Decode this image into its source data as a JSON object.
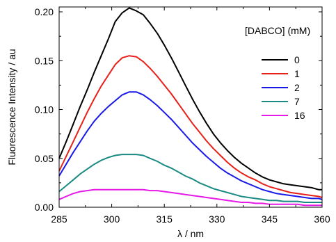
{
  "chart_data": {
    "type": "line",
    "xlabel": "λ / nm",
    "ylabel": "Fluorescence Intensity / au",
    "xlim": [
      285,
      360
    ],
    "ylim": [
      0,
      0.205
    ],
    "xticks": [
      "285",
      "300",
      "315",
      "330",
      "345",
      "360"
    ],
    "yticks": [
      "0.00",
      "0.05",
      "0.10",
      "0.15",
      "0.20"
    ],
    "legend": {
      "title": "[DABCO] (mM)",
      "placement": "top-right"
    },
    "series": [
      {
        "name": "0",
        "color": "#000000",
        "x": [
          285,
          287,
          289,
          291,
          293,
          295,
          297,
          299,
          301,
          303,
          305,
          307,
          309,
          311,
          313,
          315,
          317,
          319,
          321,
          323,
          325,
          327,
          329,
          331,
          333,
          335,
          337,
          339,
          341,
          343,
          345,
          347,
          349,
          351,
          353,
          355,
          357,
          359,
          360
        ],
        "y": [
          0.05,
          0.067,
          0.085,
          0.103,
          0.12,
          0.138,
          0.155,
          0.172,
          0.19,
          0.199,
          0.204,
          0.201,
          0.197,
          0.188,
          0.178,
          0.166,
          0.153,
          0.139,
          0.125,
          0.111,
          0.098,
          0.086,
          0.075,
          0.066,
          0.058,
          0.051,
          0.045,
          0.04,
          0.035,
          0.031,
          0.028,
          0.026,
          0.024,
          0.023,
          0.022,
          0.021,
          0.02,
          0.018,
          0.018
        ]
      },
      {
        "name": "1",
        "color": "#e8201a",
        "x": [
          285,
          287,
          289,
          291,
          293,
          295,
          297,
          299,
          301,
          303,
          305,
          307,
          309,
          311,
          313,
          315,
          317,
          319,
          321,
          323,
          325,
          327,
          329,
          331,
          333,
          335,
          337,
          339,
          341,
          343,
          345,
          347,
          349,
          351,
          353,
          355,
          357,
          359,
          360
        ],
        "y": [
          0.037,
          0.052,
          0.067,
          0.082,
          0.097,
          0.111,
          0.124,
          0.135,
          0.146,
          0.153,
          0.155,
          0.154,
          0.149,
          0.142,
          0.134,
          0.125,
          0.116,
          0.106,
          0.096,
          0.086,
          0.077,
          0.068,
          0.06,
          0.053,
          0.046,
          0.04,
          0.035,
          0.031,
          0.028,
          0.024,
          0.021,
          0.019,
          0.017,
          0.015,
          0.014,
          0.013,
          0.012,
          0.011,
          0.01
        ]
      },
      {
        "name": "2",
        "color": "#1a1ae8",
        "x": [
          285,
          287,
          289,
          291,
          293,
          295,
          297,
          299,
          301,
          303,
          305,
          307,
          309,
          311,
          313,
          315,
          317,
          319,
          321,
          323,
          325,
          327,
          329,
          331,
          333,
          335,
          337,
          339,
          341,
          343,
          345,
          347,
          349,
          351,
          353,
          355,
          357,
          359,
          360
        ],
        "y": [
          0.032,
          0.044,
          0.056,
          0.067,
          0.078,
          0.088,
          0.096,
          0.103,
          0.109,
          0.115,
          0.118,
          0.118,
          0.115,
          0.11,
          0.104,
          0.097,
          0.09,
          0.082,
          0.074,
          0.066,
          0.059,
          0.052,
          0.046,
          0.04,
          0.035,
          0.031,
          0.027,
          0.024,
          0.021,
          0.018,
          0.016,
          0.014,
          0.013,
          0.012,
          0.011,
          0.01,
          0.009,
          0.009,
          0.008
        ]
      },
      {
        "name": "7",
        "color": "#1a8a82",
        "x": [
          285,
          287,
          289,
          291,
          293,
          295,
          297,
          299,
          301,
          303,
          305,
          307,
          309,
          311,
          313,
          315,
          317,
          319,
          321,
          323,
          325,
          327,
          329,
          331,
          333,
          335,
          337,
          339,
          341,
          343,
          345,
          347,
          349,
          351,
          353,
          355,
          357,
          359,
          360
        ],
        "y": [
          0.016,
          0.022,
          0.028,
          0.034,
          0.039,
          0.044,
          0.048,
          0.051,
          0.053,
          0.054,
          0.054,
          0.054,
          0.053,
          0.05,
          0.047,
          0.043,
          0.04,
          0.036,
          0.032,
          0.029,
          0.025,
          0.022,
          0.019,
          0.017,
          0.015,
          0.013,
          0.011,
          0.01,
          0.009,
          0.008,
          0.007,
          0.007,
          0.006,
          0.006,
          0.006,
          0.005,
          0.005,
          0.005,
          0.005
        ]
      },
      {
        "name": "16",
        "color": "#e61ae6",
        "x": [
          285,
          287,
          289,
          291,
          293,
          295,
          297,
          299,
          301,
          303,
          305,
          307,
          309,
          311,
          313,
          315,
          317,
          319,
          321,
          323,
          325,
          327,
          329,
          331,
          333,
          335,
          337,
          339,
          341,
          343,
          345,
          347,
          349,
          351,
          353,
          355,
          357,
          359,
          360
        ],
        "y": [
          0.008,
          0.011,
          0.014,
          0.016,
          0.017,
          0.018,
          0.018,
          0.018,
          0.018,
          0.018,
          0.018,
          0.018,
          0.018,
          0.017,
          0.017,
          0.016,
          0.015,
          0.014,
          0.013,
          0.012,
          0.011,
          0.01,
          0.009,
          0.008,
          0.007,
          0.006,
          0.005,
          0.005,
          0.004,
          0.004,
          0.003,
          0.003,
          0.003,
          0.003,
          0.003,
          0.002,
          0.002,
          0.002,
          0.002
        ]
      }
    ]
  }
}
